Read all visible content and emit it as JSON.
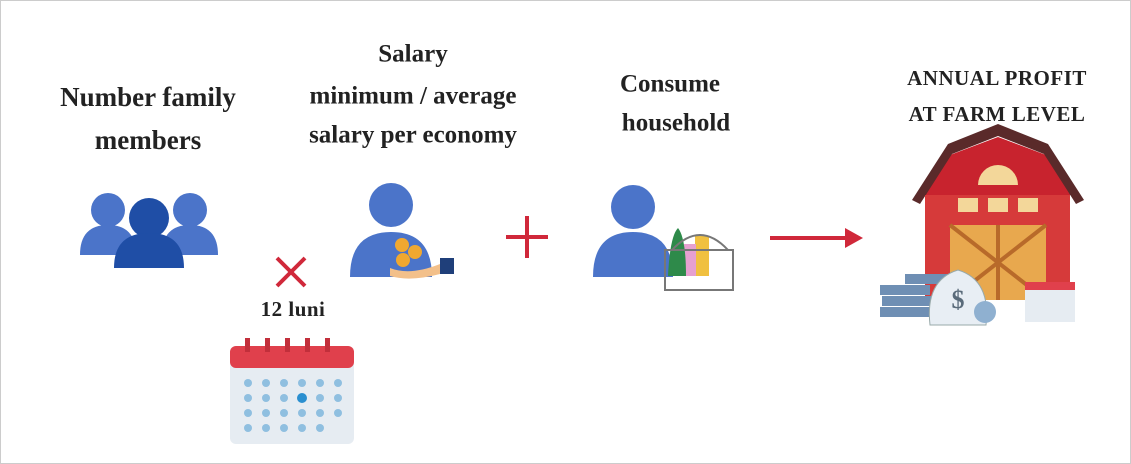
{
  "nodes": [
    {
      "label_lines": [
        "Number family",
        "members"
      ]
    },
    {
      "label_lines": [
        "Salary",
        "minimum / average",
        "salary per economy"
      ]
    },
    {
      "label_lines": [
        "Consume",
        "household"
      ]
    },
    {
      "label_lines": [
        "ANNUAL PROFIT",
        "AT FARM LEVEL"
      ]
    }
  ],
  "multiplier": {
    "label": "12 luni"
  }
}
